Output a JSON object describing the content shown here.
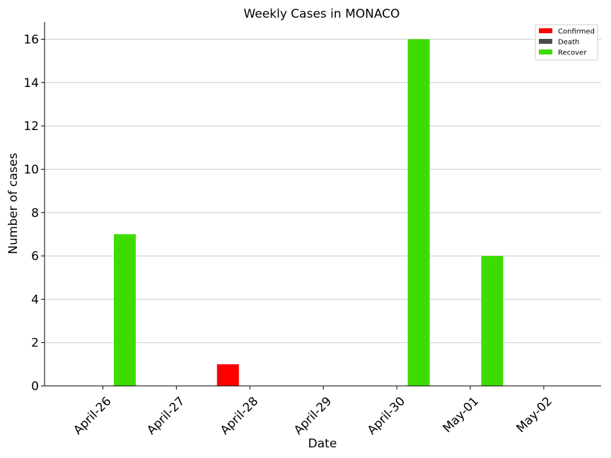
{
  "chart_data": {
    "type": "bar",
    "title": "Weekly Cases in MONACO",
    "xlabel": "Date",
    "ylabel": "Number of cases",
    "categories": [
      "April-26",
      "April-27",
      "April-28",
      "April-29",
      "April-30",
      "May-01",
      "May-02"
    ],
    "series": [
      {
        "name": "Confirmed",
        "color": "#ff0000",
        "values": [
          0,
          0,
          1,
          0,
          0,
          0,
          0
        ]
      },
      {
        "name": "Death",
        "color": "#4d4d4d",
        "values": [
          0,
          0,
          0,
          0,
          0,
          0,
          0
        ]
      },
      {
        "name": "Recover",
        "color": "#3ddc00",
        "values": [
          7,
          0,
          0,
          0,
          16,
          6,
          0
        ]
      }
    ],
    "ylim": [
      0,
      16.8
    ],
    "yticks": [
      0,
      2,
      4,
      6,
      8,
      10,
      12,
      14,
      16
    ],
    "grid": "horizontal",
    "legend": "top-right"
  }
}
